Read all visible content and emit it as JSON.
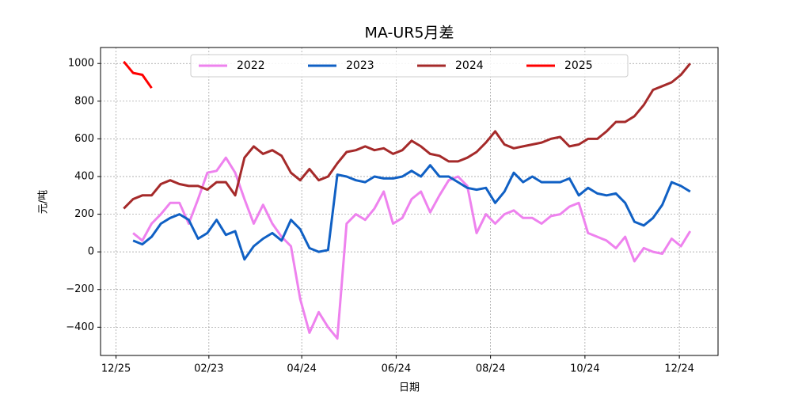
{
  "chart_data": {
    "type": "line",
    "title": "MA-UR5月差",
    "xlabel": "日期",
    "ylabel": "元/吨",
    "x": [
      5,
      11,
      17,
      23,
      29,
      35,
      41,
      47,
      53,
      59,
      65,
      71,
      77,
      83,
      89,
      95,
      101,
      107,
      113,
      119,
      125,
      131,
      137,
      143,
      149,
      155,
      161,
      167,
      173,
      179,
      185,
      191,
      197,
      203,
      209,
      215,
      221,
      227,
      233,
      239,
      245,
      251,
      257,
      263,
      269,
      275,
      281,
      287,
      293,
      299,
      305,
      311,
      317,
      323,
      329,
      335,
      341,
      347,
      353,
      359,
      365,
      371
    ],
    "series": [
      {
        "name": "2022",
        "color": "#ee82ee",
        "values": [
          null,
          100,
          60,
          150,
          200,
          260,
          260,
          150,
          280,
          420,
          430,
          500,
          420,
          280,
          150,
          250,
          150,
          80,
          30,
          -250,
          -430,
          -320,
          -400,
          -460,
          150,
          200,
          170,
          230,
          320,
          150,
          180,
          280,
          320,
          210,
          300,
          380,
          400,
          350,
          100,
          200,
          150,
          200,
          220,
          180,
          180,
          150,
          190,
          200,
          240,
          260,
          100,
          80,
          60,
          20,
          80,
          -50,
          20,
          0,
          -10,
          70,
          30,
          110
        ]
      },
      {
        "name": "2023",
        "color": "#1060c4",
        "values": [
          null,
          60,
          40,
          80,
          150,
          180,
          200,
          170,
          70,
          100,
          170,
          90,
          110,
          -40,
          30,
          70,
          100,
          60,
          170,
          120,
          20,
          0,
          10,
          410,
          400,
          380,
          370,
          400,
          390,
          390,
          400,
          430,
          400,
          460,
          400,
          400,
          370,
          340,
          330,
          340,
          260,
          320,
          420,
          370,
          400,
          370,
          370,
          370,
          390,
          300,
          340,
          310,
          300,
          310,
          260,
          160,
          140,
          180,
          250,
          370,
          350,
          320
        ]
      },
      {
        "name": "2024",
        "color": "#a52a2a",
        "values": [
          230,
          280,
          300,
          300,
          360,
          380,
          360,
          350,
          350,
          330,
          370,
          370,
          300,
          500,
          560,
          520,
          540,
          510,
          420,
          380,
          440,
          380,
          400,
          470,
          530,
          540,
          560,
          540,
          550,
          520,
          540,
          590,
          560,
          520,
          510,
          480,
          480,
          500,
          530,
          580,
          640,
          570,
          550,
          560,
          570,
          580,
          600,
          610,
          560,
          570,
          600,
          600,
          640,
          690,
          690,
          720,
          780,
          860,
          880,
          900,
          940,
          1000
        ]
      },
      {
        "name": "2025",
        "color": "#ff0000",
        "values": [
          1010,
          950,
          940,
          870,
          null,
          null,
          null,
          null,
          null,
          null,
          null,
          null,
          null,
          null,
          null,
          null,
          null,
          null,
          null,
          null,
          null,
          null,
          null,
          null,
          null,
          null,
          null,
          null,
          null,
          null,
          null,
          null,
          null,
          null,
          null,
          null,
          null,
          null,
          null,
          null,
          null,
          null,
          null,
          null,
          null,
          null,
          null,
          null,
          null,
          null,
          null,
          null,
          null,
          null,
          null,
          null,
          null,
          null,
          null,
          null,
          null,
          null
        ]
      }
    ],
    "xlim": [
      -10,
      389
    ],
    "xticks": [
      {
        "value": 0,
        "label": "12/25"
      },
      {
        "value": 60,
        "label": "02/23"
      },
      {
        "value": 120,
        "label": "04/24"
      },
      {
        "value": 181,
        "label": "06/24"
      },
      {
        "value": 242,
        "label": "08/24"
      },
      {
        "value": 303,
        "label": "10/24"
      },
      {
        "value": 364,
        "label": "12/24"
      }
    ],
    "ylim": [
      -550,
      1085
    ],
    "yticks": [
      {
        "value": -400,
        "label": "−400"
      },
      {
        "value": -200,
        "label": "−200"
      },
      0,
      200,
      400,
      600,
      800,
      1000
    ],
    "grid": true,
    "legend": "upper center"
  }
}
